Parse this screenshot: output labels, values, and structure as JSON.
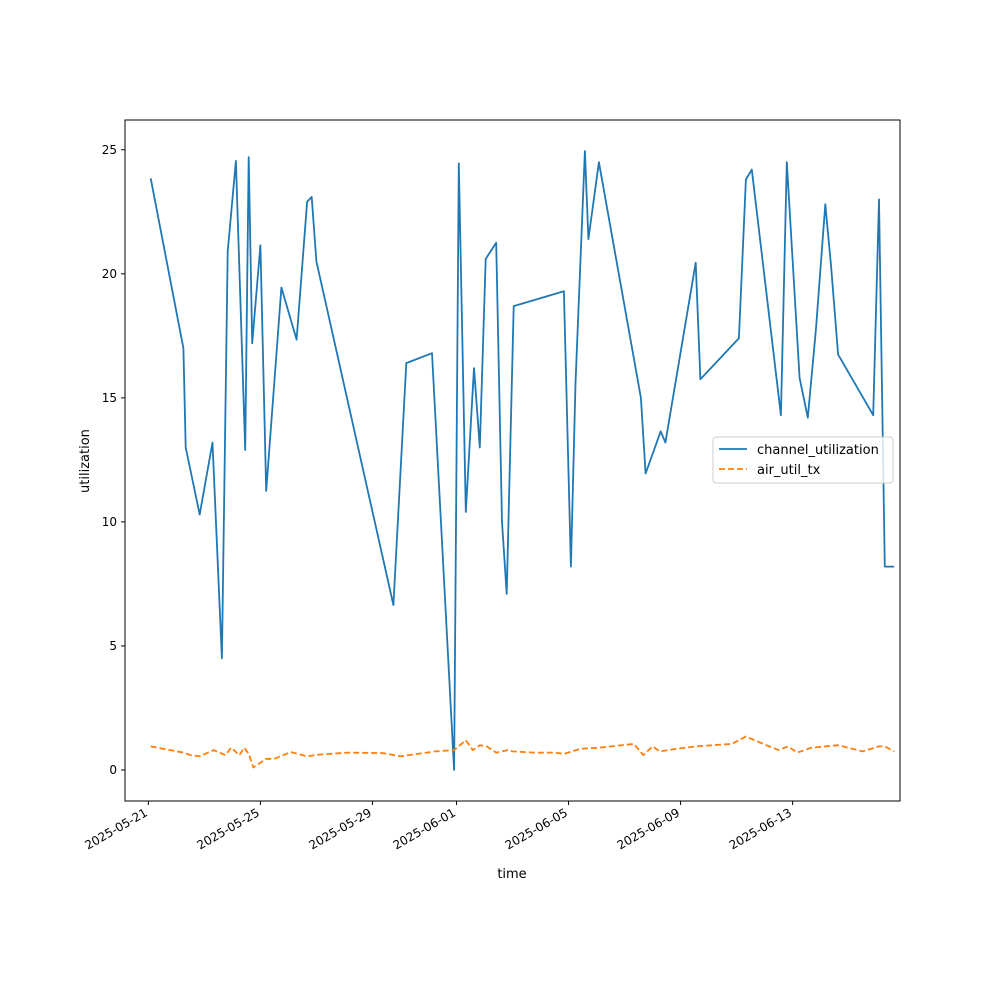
{
  "chart_data": {
    "type": "line",
    "title": "",
    "xlabel": "time",
    "ylabel": "utilization",
    "xlim": [
      "2025-05-20T04:00",
      "2025-06-16T20:00"
    ],
    "ylim": [
      -1.25,
      26.2
    ],
    "x_ticks": [
      "2025-05-21",
      "2025-05-25",
      "2025-05-29",
      "2025-06-01",
      "2025-06-05",
      "2025-06-09",
      "2025-06-13"
    ],
    "y_ticks": [
      0,
      5,
      10,
      15,
      20,
      25
    ],
    "y_tick_labels": [
      "0",
      "5",
      "10",
      "15",
      "20",
      "25"
    ],
    "grid": false,
    "legend_position": "center-right",
    "series": [
      {
        "name": "channel_utilization",
        "color": "#1f77b4",
        "style": "solid",
        "x": [
          "2025-05-21T02:00",
          "2025-05-22T06:00",
          "2025-05-22T08:00",
          "2025-05-22T20:00",
          "2025-05-23T07:00",
          "2025-05-23T15:00",
          "2025-05-23T20:00",
          "2025-05-24T03:00",
          "2025-05-24T11:00",
          "2025-05-24T14:00",
          "2025-05-24T17:00",
          "2025-05-25T00:00",
          "2025-05-25T05:00",
          "2025-05-25T18:00",
          "2025-05-26T07:00",
          "2025-05-26T16:00",
          "2025-05-26T20:00",
          "2025-05-27T00:00",
          "2025-05-29T18:00",
          "2025-05-30T05:00",
          "2025-05-31T03:00",
          "2025-05-31T22:00",
          "2025-06-01T02:00",
          "2025-06-01T08:00",
          "2025-06-01T15:00",
          "2025-06-01T20:00",
          "2025-06-02T01:00",
          "2025-06-02T10:00",
          "2025-06-02T15:00",
          "2025-06-02T19:00",
          "2025-06-03T01:00",
          "2025-06-04T20:00",
          "2025-06-05T02:00",
          "2025-06-05T06:00",
          "2025-06-05T14:00",
          "2025-06-05T17:00",
          "2025-06-06T02:00",
          "2025-06-07T14:00",
          "2025-06-07T18:00",
          "2025-06-08T07:00",
          "2025-06-08T11:00",
          "2025-06-09T13:00",
          "2025-06-09T17:00",
          "2025-06-11T02:00",
          "2025-06-11T08:00",
          "2025-06-11T13:00",
          "2025-06-12T14:00",
          "2025-06-12T19:00",
          "2025-06-13T06:00",
          "2025-06-13T13:00",
          "2025-06-13T20:00",
          "2025-06-14T04:00",
          "2025-06-14T09:00",
          "2025-06-14T15:00",
          "2025-06-15T21:00",
          "2025-06-16T02:00",
          "2025-06-16T07:00",
          "2025-06-16T15:00"
        ],
        "y": [
          23.85,
          17.0,
          13.0,
          10.3,
          13.2,
          4.5,
          20.9,
          24.55,
          12.9,
          24.7,
          17.2,
          21.15,
          11.25,
          19.45,
          17.35,
          22.9,
          23.1,
          20.5,
          6.65,
          16.4,
          16.8,
          0.0,
          24.45,
          10.4,
          16.2,
          13.0,
          20.6,
          21.25,
          10.0,
          7.1,
          18.7,
          19.3,
          8.2,
          15.6,
          24.95,
          21.4,
          24.5,
          15.0,
          11.95,
          13.65,
          13.2,
          20.45,
          15.75,
          17.4,
          23.8,
          24.2,
          14.3,
          24.5,
          15.8,
          14.2,
          17.8,
          22.8,
          20.3,
          16.75,
          14.3,
          23.0,
          8.2,
          8.2
        ]
      },
      {
        "name": "air_util_tx",
        "color": "#ff7f0e",
        "style": "dashed",
        "x": [
          "2025-05-21T02:00",
          "2025-05-22T06:00",
          "2025-05-22T12:00",
          "2025-05-22T20:00",
          "2025-05-23T08:00",
          "2025-05-23T18:00",
          "2025-05-23T23:00",
          "2025-05-24T06:00",
          "2025-05-24T10:00",
          "2025-05-24T14:00",
          "2025-05-24T18:00",
          "2025-05-25T05:00",
          "2025-05-25T12:00",
          "2025-05-26T02:00",
          "2025-05-26T16:00",
          "2025-05-27T02:00",
          "2025-05-28T03:00",
          "2025-05-29T09:00",
          "2025-05-30T00:00",
          "2025-05-31T06:00",
          "2025-05-31T22:00",
          "2025-06-01T08:00",
          "2025-06-01T14:00",
          "2025-06-01T20:00",
          "2025-06-02T02:00",
          "2025-06-02T10:00",
          "2025-06-02T20:00",
          "2025-06-03T00:00",
          "2025-06-03T19:00",
          "2025-06-04T12:00",
          "2025-06-04T20:00",
          "2025-06-05T10:00",
          "2025-06-06T02:00",
          "2025-06-07T08:00",
          "2025-06-07T16:00",
          "2025-06-08T00:00",
          "2025-06-08T06:00",
          "2025-06-08T20:00",
          "2025-06-09T13:00",
          "2025-06-10T20:00",
          "2025-06-11T08:00",
          "2025-06-12T04:00",
          "2025-06-12T12:00",
          "2025-06-12T20:00",
          "2025-06-13T04:00",
          "2025-06-13T16:00",
          "2025-06-14T15:00",
          "2025-06-15T12:00",
          "2025-06-16T02:00",
          "2025-06-16T07:00",
          "2025-06-16T15:00"
        ],
        "y": [
          0.95,
          0.7,
          0.6,
          0.55,
          0.8,
          0.6,
          0.9,
          0.6,
          0.9,
          0.65,
          0.1,
          0.45,
          0.45,
          0.72,
          0.55,
          0.62,
          0.7,
          0.68,
          0.55,
          0.75,
          0.8,
          1.2,
          0.8,
          1.0,
          0.95,
          0.7,
          0.8,
          0.75,
          0.7,
          0.7,
          0.65,
          0.85,
          0.9,
          1.05,
          0.6,
          0.95,
          0.75,
          0.85,
          0.95,
          1.05,
          1.35,
          0.95,
          0.8,
          0.95,
          0.7,
          0.9,
          1.0,
          0.75,
          0.95,
          0.95,
          0.75
        ]
      }
    ]
  }
}
